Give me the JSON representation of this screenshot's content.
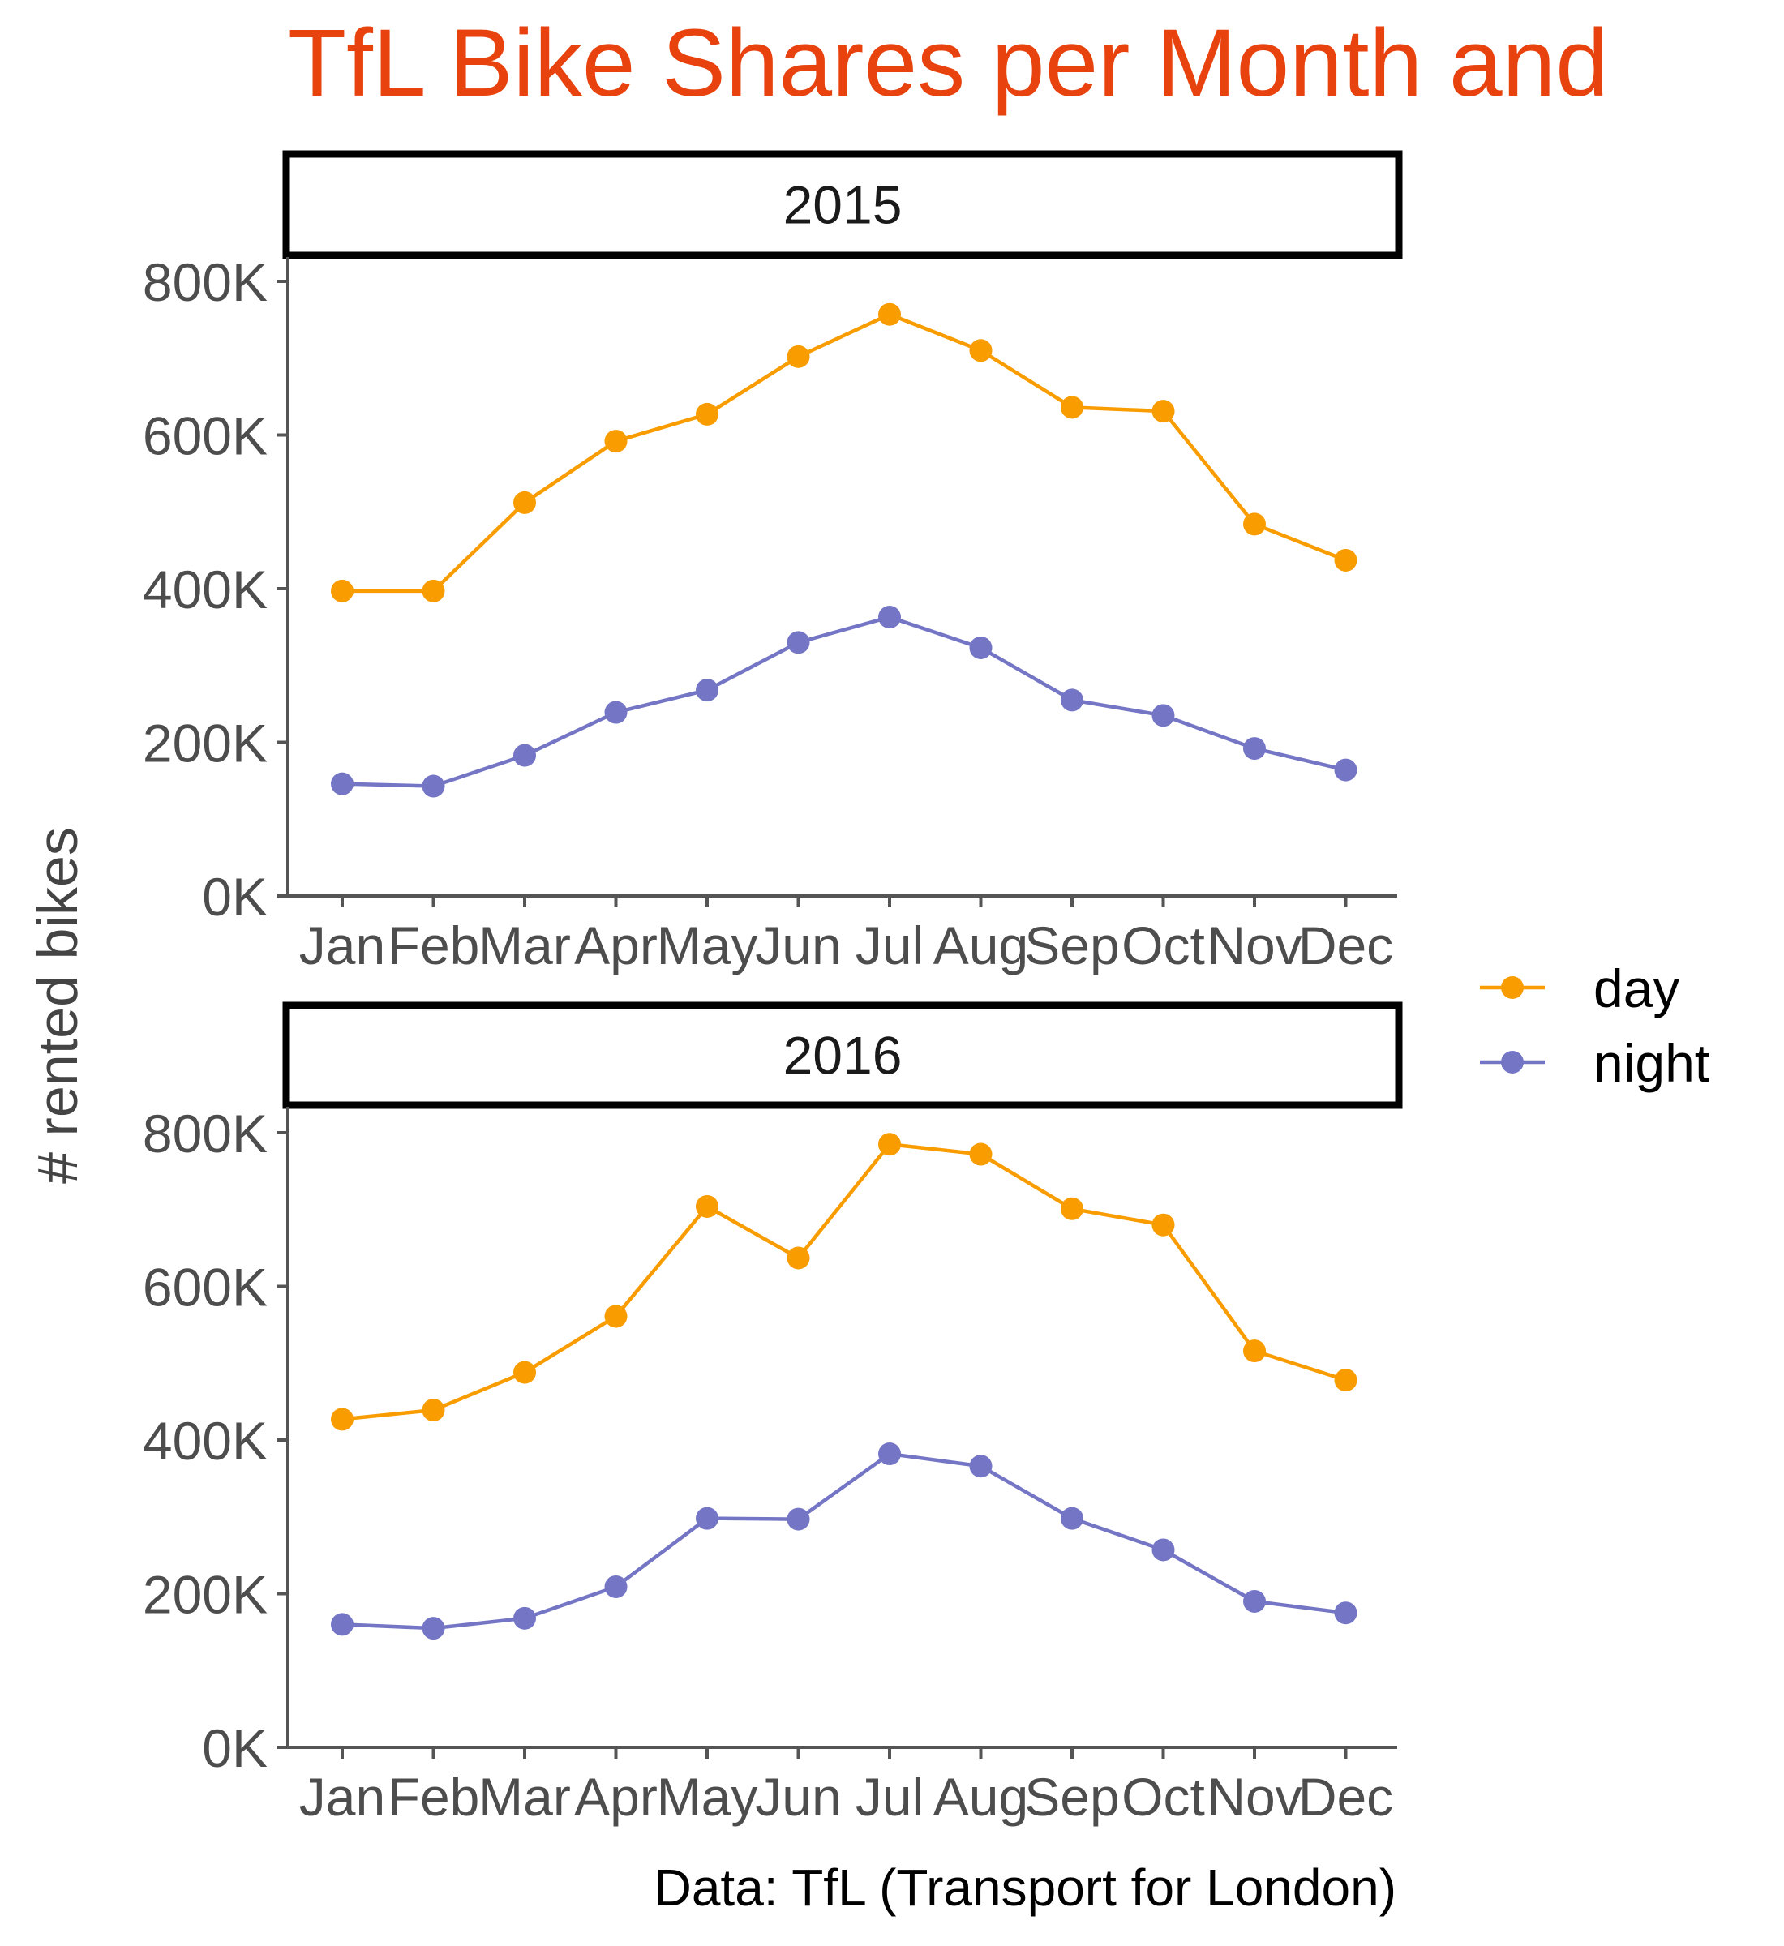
{
  "title": "TfL Bike Shares per Month and",
  "caption": "Data: TfL (Transport for London)",
  "colors": {
    "title": "#E8420E",
    "day": "#F89C00",
    "night": "#7476C5",
    "axis": "#555555",
    "tick_text": "#4D4D4D",
    "strip_border": "#000000"
  },
  "legend": {
    "position": "right",
    "items": [
      {
        "label": "day",
        "series": "day"
      },
      {
        "label": "night",
        "series": "night"
      }
    ]
  },
  "chart_data": {
    "type": "line",
    "ylabel": "# rented bikes",
    "xlabel": "",
    "ylim": [
      0,
      800000
    ],
    "y_ticks": [
      0,
      200000,
      400000,
      600000,
      800000
    ],
    "y_tick_labels": [
      "0K",
      "200K",
      "400K",
      "600K",
      "800K"
    ],
    "categories": [
      "Jan",
      "Feb",
      "Mar",
      "Apr",
      "May",
      "Jun",
      "Jul",
      "Aug",
      "Sep",
      "Oct",
      "Nov",
      "Dec"
    ],
    "grid": false,
    "panels": [
      {
        "strip": "2015",
        "series": [
          {
            "name": "day",
            "values": [
              397000,
              397000,
              512000,
              592000,
              627000,
              702000,
              757000,
              710000,
              636000,
              631000,
              484000,
              437000
            ]
          },
          {
            "name": "night",
            "values": [
              146000,
              143000,
              183000,
              239000,
              268000,
              330000,
              363000,
              323000,
              255000,
              235000,
              192000,
              164000
            ]
          }
        ]
      },
      {
        "strip": "2016",
        "series": [
          {
            "name": "day",
            "values": [
              427000,
              439000,
              488000,
              561000,
              704000,
              637000,
              785000,
              772000,
              701000,
              680000,
              516000,
              478000
            ]
          },
          {
            "name": "night",
            "values": [
              160000,
              155000,
              168000,
              209000,
              298000,
              297000,
              382000,
              366000,
              298000,
              257000,
              190000,
              175000
            ]
          }
        ]
      }
    ]
  }
}
